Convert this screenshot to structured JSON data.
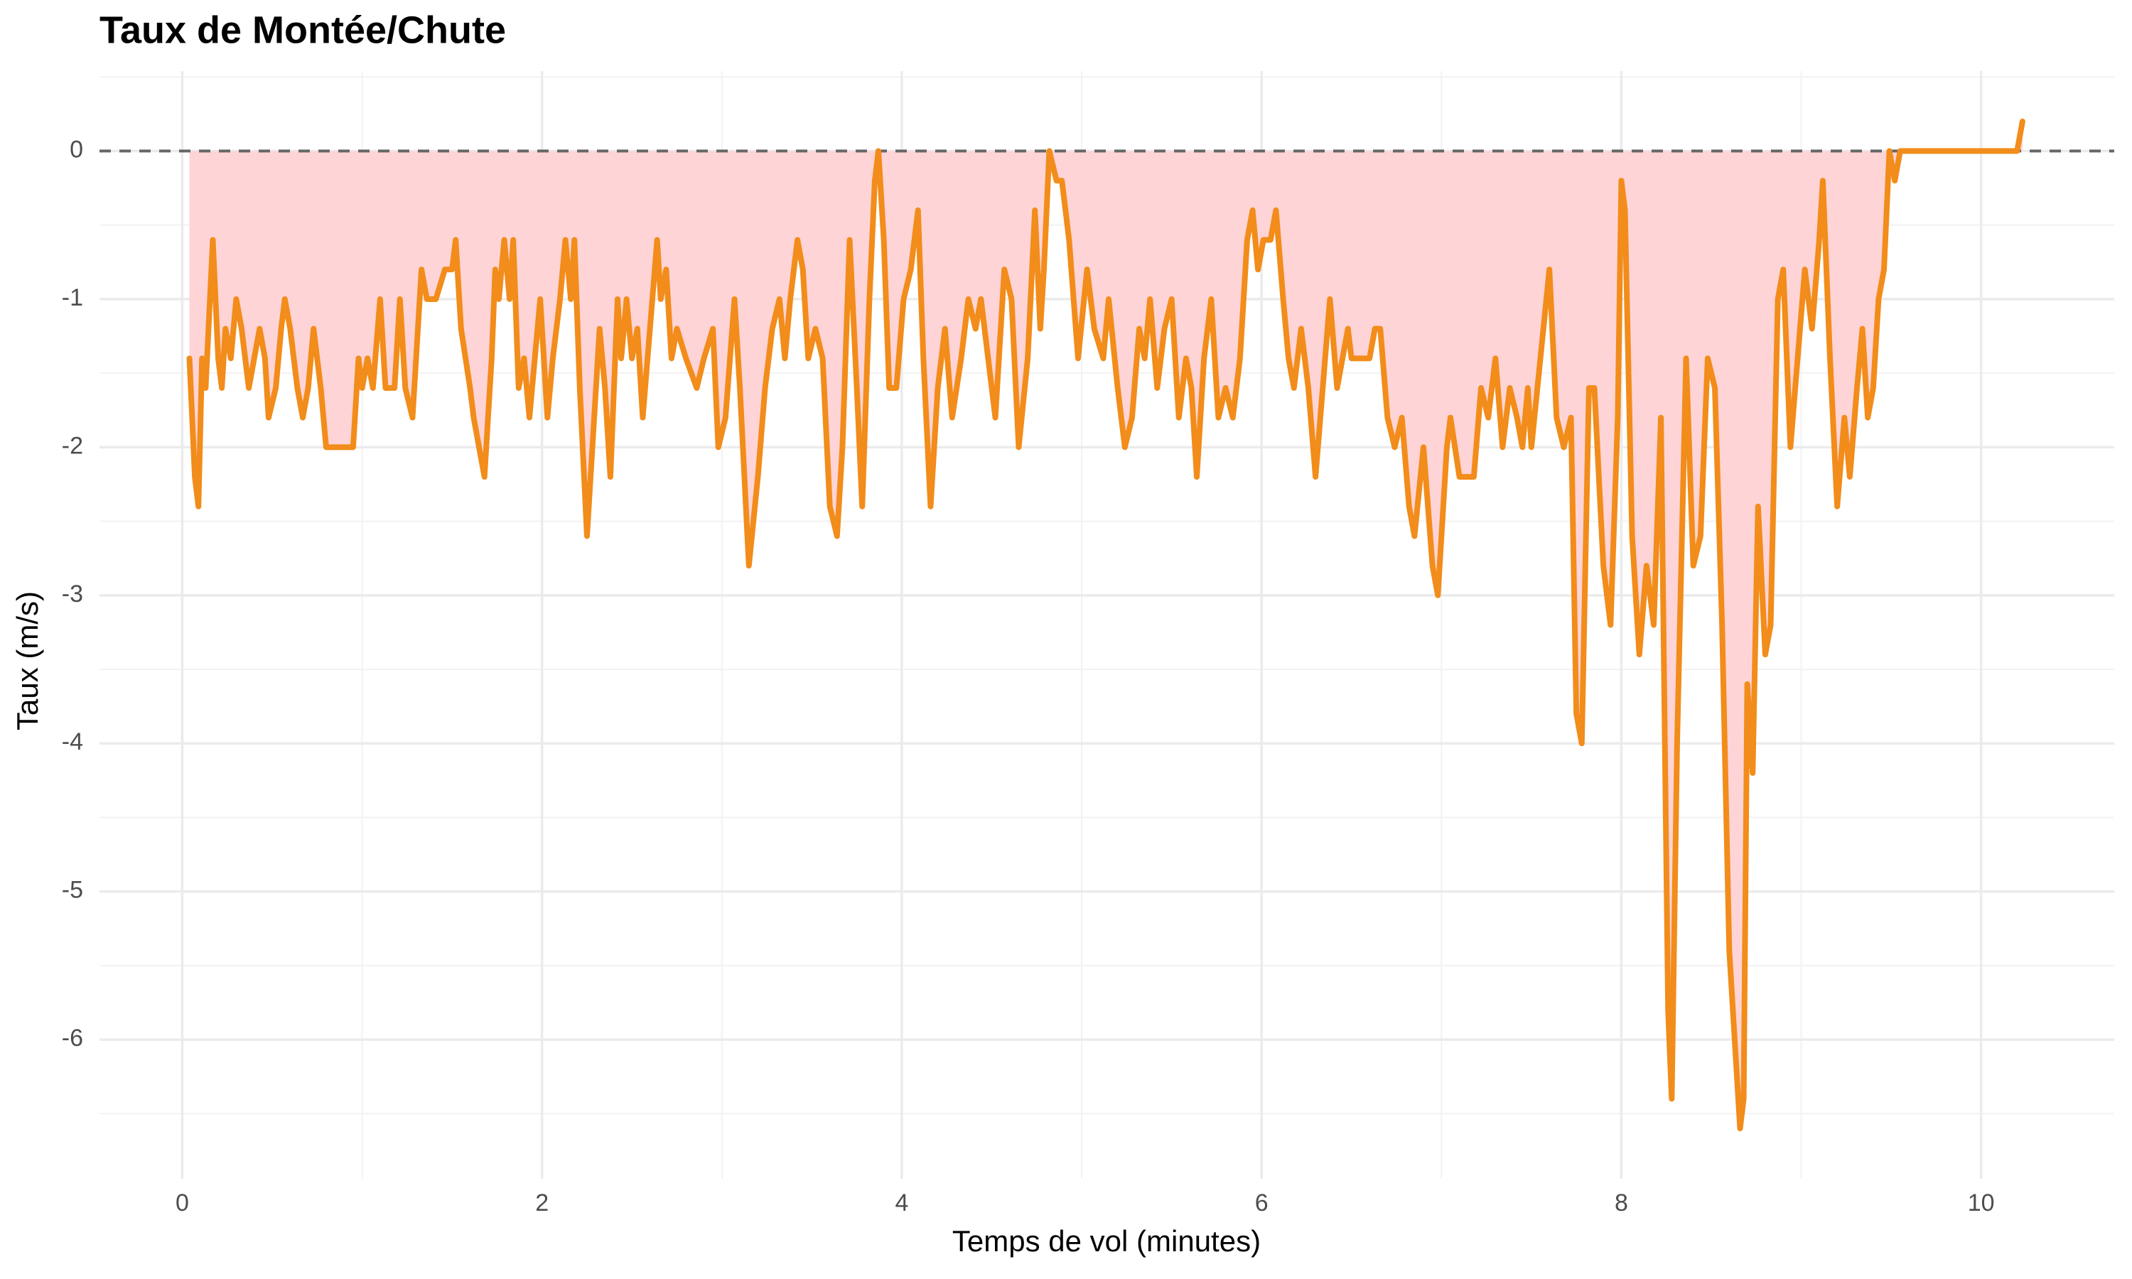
{
  "chart_data": {
    "type": "line",
    "title": "Taux de Montée/Chute",
    "xlabel": "Temps de vol (minutes)",
    "ylabel": "Taux (m/s)",
    "xlim": [
      -0.46,
      10.74
    ],
    "ylim": [
      -6.94,
      0.54
    ],
    "xticks": [
      0,
      2,
      4,
      6,
      8,
      10
    ],
    "x_minor_ticks": [
      1,
      3,
      5,
      7,
      9
    ],
    "yticks": [
      -6,
      -5,
      -4,
      -3,
      -2,
      -1,
      0
    ],
    "y_minor_ticks": [
      -6.5,
      -5.5,
      -4.5,
      -3.5,
      -2.5,
      -1.5,
      -0.5,
      0.5
    ],
    "grid": true,
    "hline": 0,
    "hline_color": "#666666",
    "fill_color": "#ffd4d6",
    "series": [
      {
        "color": "#f28c1a",
        "x": [
          0.04,
          0.07,
          0.09,
          0.11,
          0.13,
          0.17,
          0.2,
          0.22,
          0.24,
          0.27,
          0.3,
          0.33,
          0.37,
          0.4,
          0.43,
          0.46,
          0.48,
          0.52,
          0.55,
          0.57,
          0.6,
          0.64,
          0.67,
          0.7,
          0.73,
          0.77,
          0.8,
          0.9,
          0.95,
          0.98,
          1.0,
          1.03,
          1.06,
          1.1,
          1.13,
          1.18,
          1.21,
          1.24,
          1.28,
          1.3,
          1.33,
          1.36,
          1.41,
          1.46,
          1.5,
          1.52,
          1.55,
          1.6,
          1.62,
          1.65,
          1.68,
          1.72,
          1.74,
          1.76,
          1.79,
          1.82,
          1.84,
          1.87,
          1.9,
          1.93,
          1.96,
          1.99,
          2.03,
          2.06,
          2.1,
          2.13,
          2.16,
          2.18,
          2.21,
          2.25,
          2.28,
          2.32,
          2.35,
          2.38,
          2.42,
          2.44,
          2.47,
          2.5,
          2.53,
          2.56,
          2.6,
          2.64,
          2.66,
          2.69,
          2.72,
          2.75,
          2.8,
          2.86,
          2.9,
          2.95,
          2.98,
          3.02,
          3.07,
          3.1,
          3.15,
          3.2,
          3.24,
          3.28,
          3.32,
          3.35,
          3.38,
          3.42,
          3.45,
          3.48,
          3.52,
          3.56,
          3.6,
          3.64,
          3.67,
          3.71,
          3.75,
          3.78,
          3.82,
          3.85,
          3.87,
          3.9,
          3.93,
          3.97,
          4.01,
          4.05,
          4.09,
          4.12,
          4.16,
          4.2,
          4.24,
          4.28,
          4.33,
          4.37,
          4.41,
          4.44,
          4.48,
          4.52,
          4.57,
          4.61,
          4.65,
          4.7,
          4.74,
          4.77,
          4.79,
          4.82,
          4.86,
          4.89,
          4.93,
          4.98,
          5.03,
          5.07,
          5.12,
          5.15,
          5.2,
          5.24,
          5.28,
          5.32,
          5.35,
          5.38,
          5.42,
          5.46,
          5.5,
          5.54,
          5.58,
          5.61,
          5.64,
          5.68,
          5.72,
          5.76,
          5.8,
          5.84,
          5.88,
          5.92,
          5.95,
          5.98,
          6.01,
          6.05,
          6.08,
          6.12,
          6.15,
          6.18,
          6.22,
          6.26,
          6.3,
          6.34,
          6.38,
          6.42,
          6.45,
          6.48,
          6.5,
          6.55,
          6.6,
          6.63,
          6.66,
          6.7,
          6.74,
          6.78,
          6.82,
          6.85,
          6.9,
          6.95,
          6.98,
          7.03,
          7.05,
          7.1,
          7.14,
          7.18,
          7.22,
          7.26,
          7.3,
          7.34,
          7.38,
          7.42,
          7.45,
          7.48,
          7.5,
          7.55,
          7.6,
          7.64,
          7.68,
          7.72,
          7.75,
          7.78,
          7.82,
          7.85,
          7.9,
          7.94,
          7.98,
          8.0,
          8.02,
          8.06,
          8.1,
          8.14,
          8.18,
          8.22,
          8.26,
          8.28,
          8.31,
          8.36,
          8.4,
          8.44,
          8.48,
          8.52,
          8.56,
          8.6,
          8.63,
          8.66,
          8.68,
          8.7,
          8.73,
          8.76,
          8.8,
          8.83,
          8.87,
          8.9,
          8.94,
          8.98,
          9.02,
          9.06,
          9.1,
          9.12,
          9.16,
          9.2,
          9.24,
          9.27,
          9.31,
          9.34,
          9.37,
          9.4,
          9.43,
          9.46,
          9.49,
          9.52,
          9.55,
          9.7,
          10.0,
          10.2,
          10.23
        ],
        "values": [
          -1.4,
          -2.2,
          -2.4,
          -1.4,
          -1.6,
          -0.6,
          -1.4,
          -1.6,
          -1.2,
          -1.4,
          -1.0,
          -1.2,
          -1.6,
          -1.4,
          -1.2,
          -1.4,
          -1.8,
          -1.6,
          -1.2,
          -1.0,
          -1.2,
          -1.6,
          -1.8,
          -1.6,
          -1.2,
          -1.6,
          -2.0,
          -2.0,
          -2.0,
          -1.4,
          -1.6,
          -1.4,
          -1.6,
          -1.0,
          -1.6,
          -1.6,
          -1.0,
          -1.6,
          -1.8,
          -1.4,
          -0.8,
          -1.0,
          -1.0,
          -0.8,
          -0.8,
          -0.6,
          -1.2,
          -1.6,
          -1.8,
          -2.0,
          -2.2,
          -1.4,
          -0.8,
          -1.0,
          -0.6,
          -1.0,
          -0.6,
          -1.6,
          -1.4,
          -1.8,
          -1.4,
          -1.0,
          -1.8,
          -1.4,
          -1.0,
          -0.6,
          -1.0,
          -0.6,
          -1.6,
          -2.6,
          -2.0,
          -1.2,
          -1.6,
          -2.2,
          -1.0,
          -1.4,
          -1.0,
          -1.4,
          -1.2,
          -1.8,
          -1.2,
          -0.6,
          -1.0,
          -0.8,
          -1.4,
          -1.2,
          -1.4,
          -1.6,
          -1.4,
          -1.2,
          -2.0,
          -1.8,
          -1.0,
          -1.6,
          -2.8,
          -2.2,
          -1.6,
          -1.2,
          -1.0,
          -1.4,
          -1.0,
          -0.6,
          -0.8,
          -1.4,
          -1.2,
          -1.4,
          -2.4,
          -2.6,
          -2.0,
          -0.6,
          -1.6,
          -2.4,
          -1.0,
          -0.2,
          0,
          -0.6,
          -1.6,
          -1.6,
          -1.0,
          -0.8,
          -0.4,
          -1.4,
          -2.4,
          -1.6,
          -1.2,
          -1.8,
          -1.4,
          -1.0,
          -1.2,
          -1.0,
          -1.4,
          -1.8,
          -0.8,
          -1.0,
          -2.0,
          -1.4,
          -0.4,
          -1.2,
          -0.8,
          0,
          -0.2,
          -0.2,
          -0.6,
          -1.4,
          -0.8,
          -1.2,
          -1.4,
          -1.0,
          -1.6,
          -2.0,
          -1.8,
          -1.2,
          -1.4,
          -1.0,
          -1.6,
          -1.2,
          -1.0,
          -1.8,
          -1.4,
          -1.6,
          -2.2,
          -1.4,
          -1.0,
          -1.8,
          -1.6,
          -1.8,
          -1.4,
          -0.6,
          -0.4,
          -0.8,
          -0.6,
          -0.6,
          -0.4,
          -1.0,
          -1.4,
          -1.6,
          -1.2,
          -1.6,
          -2.2,
          -1.6,
          -1.0,
          -1.6,
          -1.4,
          -1.2,
          -1.4,
          -1.4,
          -1.4,
          -1.2,
          -1.2,
          -1.8,
          -2.0,
          -1.8,
          -2.4,
          -2.6,
          -2.0,
          -2.8,
          -3.0,
          -2.0,
          -1.8,
          -2.2,
          -2.2,
          -2.2,
          -1.6,
          -1.8,
          -1.4,
          -2.0,
          -1.6,
          -1.8,
          -2.0,
          -1.6,
          -2.0,
          -1.4,
          -0.8,
          -1.8,
          -2.0,
          -1.8,
          -3.8,
          -4.0,
          -1.6,
          -1.6,
          -2.8,
          -3.2,
          -1.8,
          -0.2,
          -0.4,
          -2.6,
          -3.4,
          -2.8,
          -3.2,
          -1.8,
          -5.8,
          -6.4,
          -4.0,
          -1.4,
          -2.8,
          -2.6,
          -1.4,
          -1.6,
          -3.2,
          -5.4,
          -6.0,
          -6.6,
          -6.4,
          -3.6,
          -4.2,
          -2.4,
          -3.4,
          -3.2,
          -1.0,
          -0.8,
          -2.0,
          -1.4,
          -0.8,
          -1.2,
          -0.6,
          -0.2,
          -1.4,
          -2.4,
          -1.8,
          -2.2,
          -1.6,
          -1.2,
          -1.8,
          -1.6,
          -1.0,
          -0.8,
          0,
          -0.2,
          0,
          0,
          0,
          0,
          0.2
        ]
      }
    ]
  }
}
